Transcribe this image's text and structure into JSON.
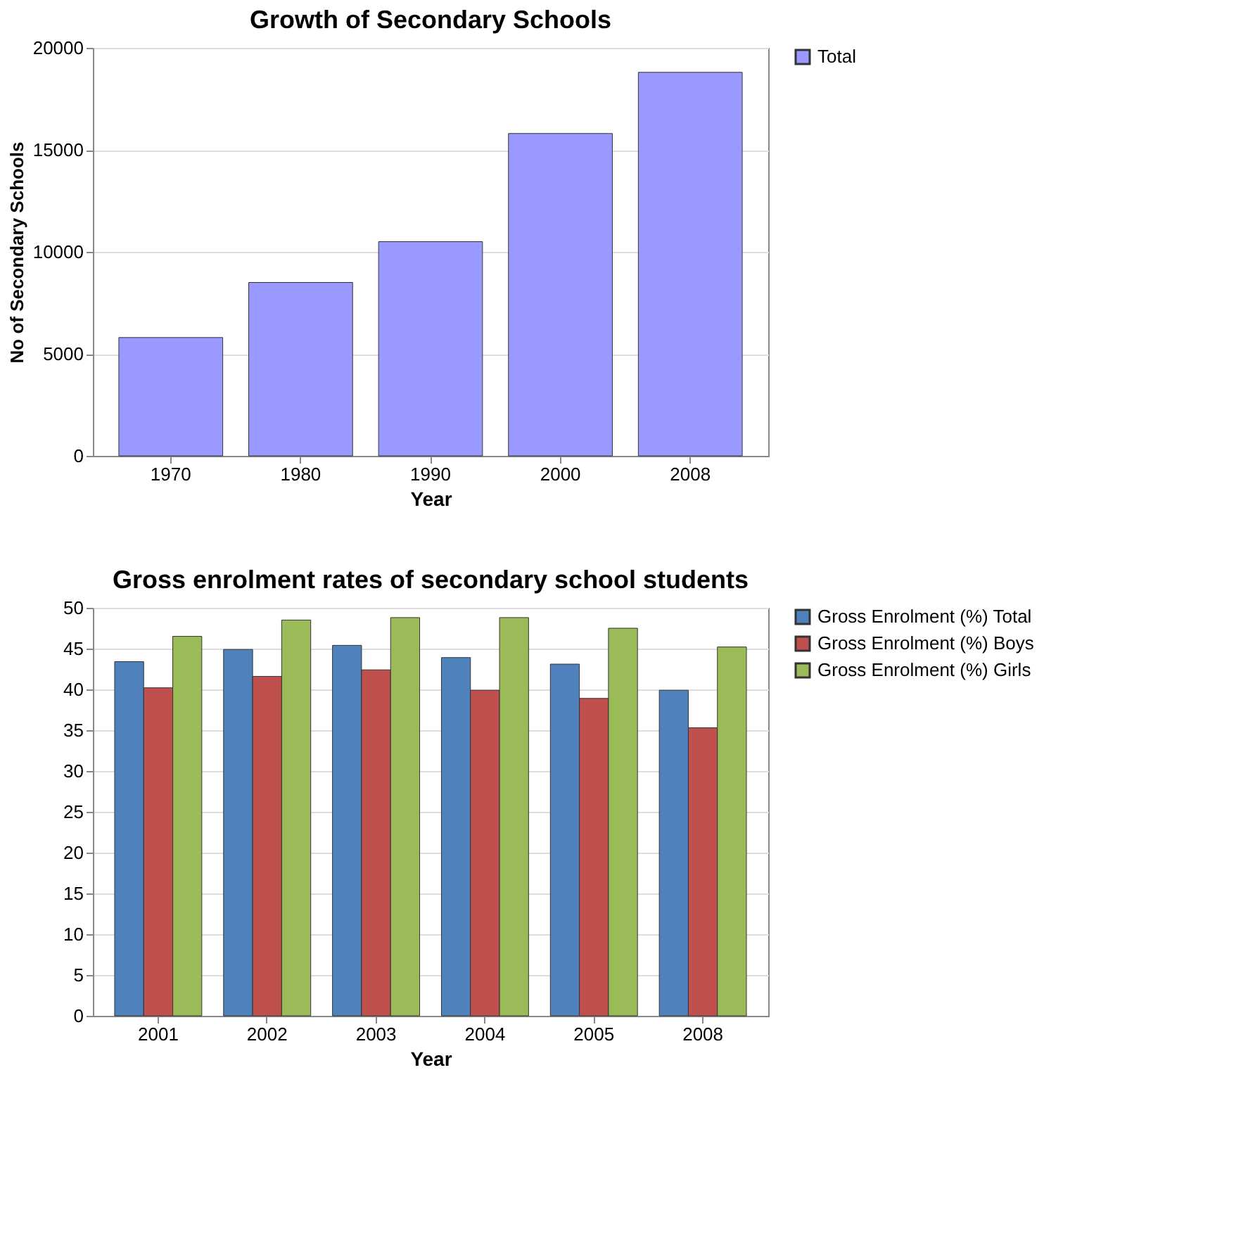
{
  "chart_data": [
    {
      "type": "bar",
      "title": "Growth of Secondary Schools",
      "xlabel": "Year",
      "ylabel": "No of Secondary Schools",
      "categories": [
        "1970",
        "1980",
        "1990",
        "2000",
        "2008"
      ],
      "series": [
        {
          "name": "Total",
          "color": "#9999ff",
          "values": [
            5800,
            8500,
            10500,
            15800,
            18800
          ]
        }
      ],
      "ylim": [
        0,
        20000
      ],
      "yticks": [
        0,
        5000,
        10000,
        15000,
        20000
      ],
      "grid": "y",
      "legend": "right"
    },
    {
      "type": "bar",
      "title": "Gross enrolment rates of secondary school students",
      "xlabel": "Year",
      "categories": [
        "2001",
        "2002",
        "2003",
        "2004",
        "2005",
        "2008"
      ],
      "series": [
        {
          "name": "Gross Enrolment (%) Total",
          "color": "#4f81bd",
          "values": [
            43.4,
            44.9,
            45.4,
            43.9,
            43.1,
            39.9
          ]
        },
        {
          "name": "Gross Enrolment (%) Boys",
          "color": "#c0504d",
          "values": [
            40.2,
            41.6,
            42.4,
            39.9,
            38.9,
            35.3
          ]
        },
        {
          "name": "Gross Enrolment (%) Girls",
          "color": "#9bbb59",
          "values": [
            46.5,
            48.5,
            48.8,
            48.8,
            47.5,
            45.2
          ]
        }
      ],
      "ylim": [
        0,
        50
      ],
      "yticks": [
        0,
        5,
        10,
        15,
        20,
        25,
        30,
        35,
        40,
        45,
        50
      ],
      "grid": "y",
      "legend": "right"
    }
  ]
}
